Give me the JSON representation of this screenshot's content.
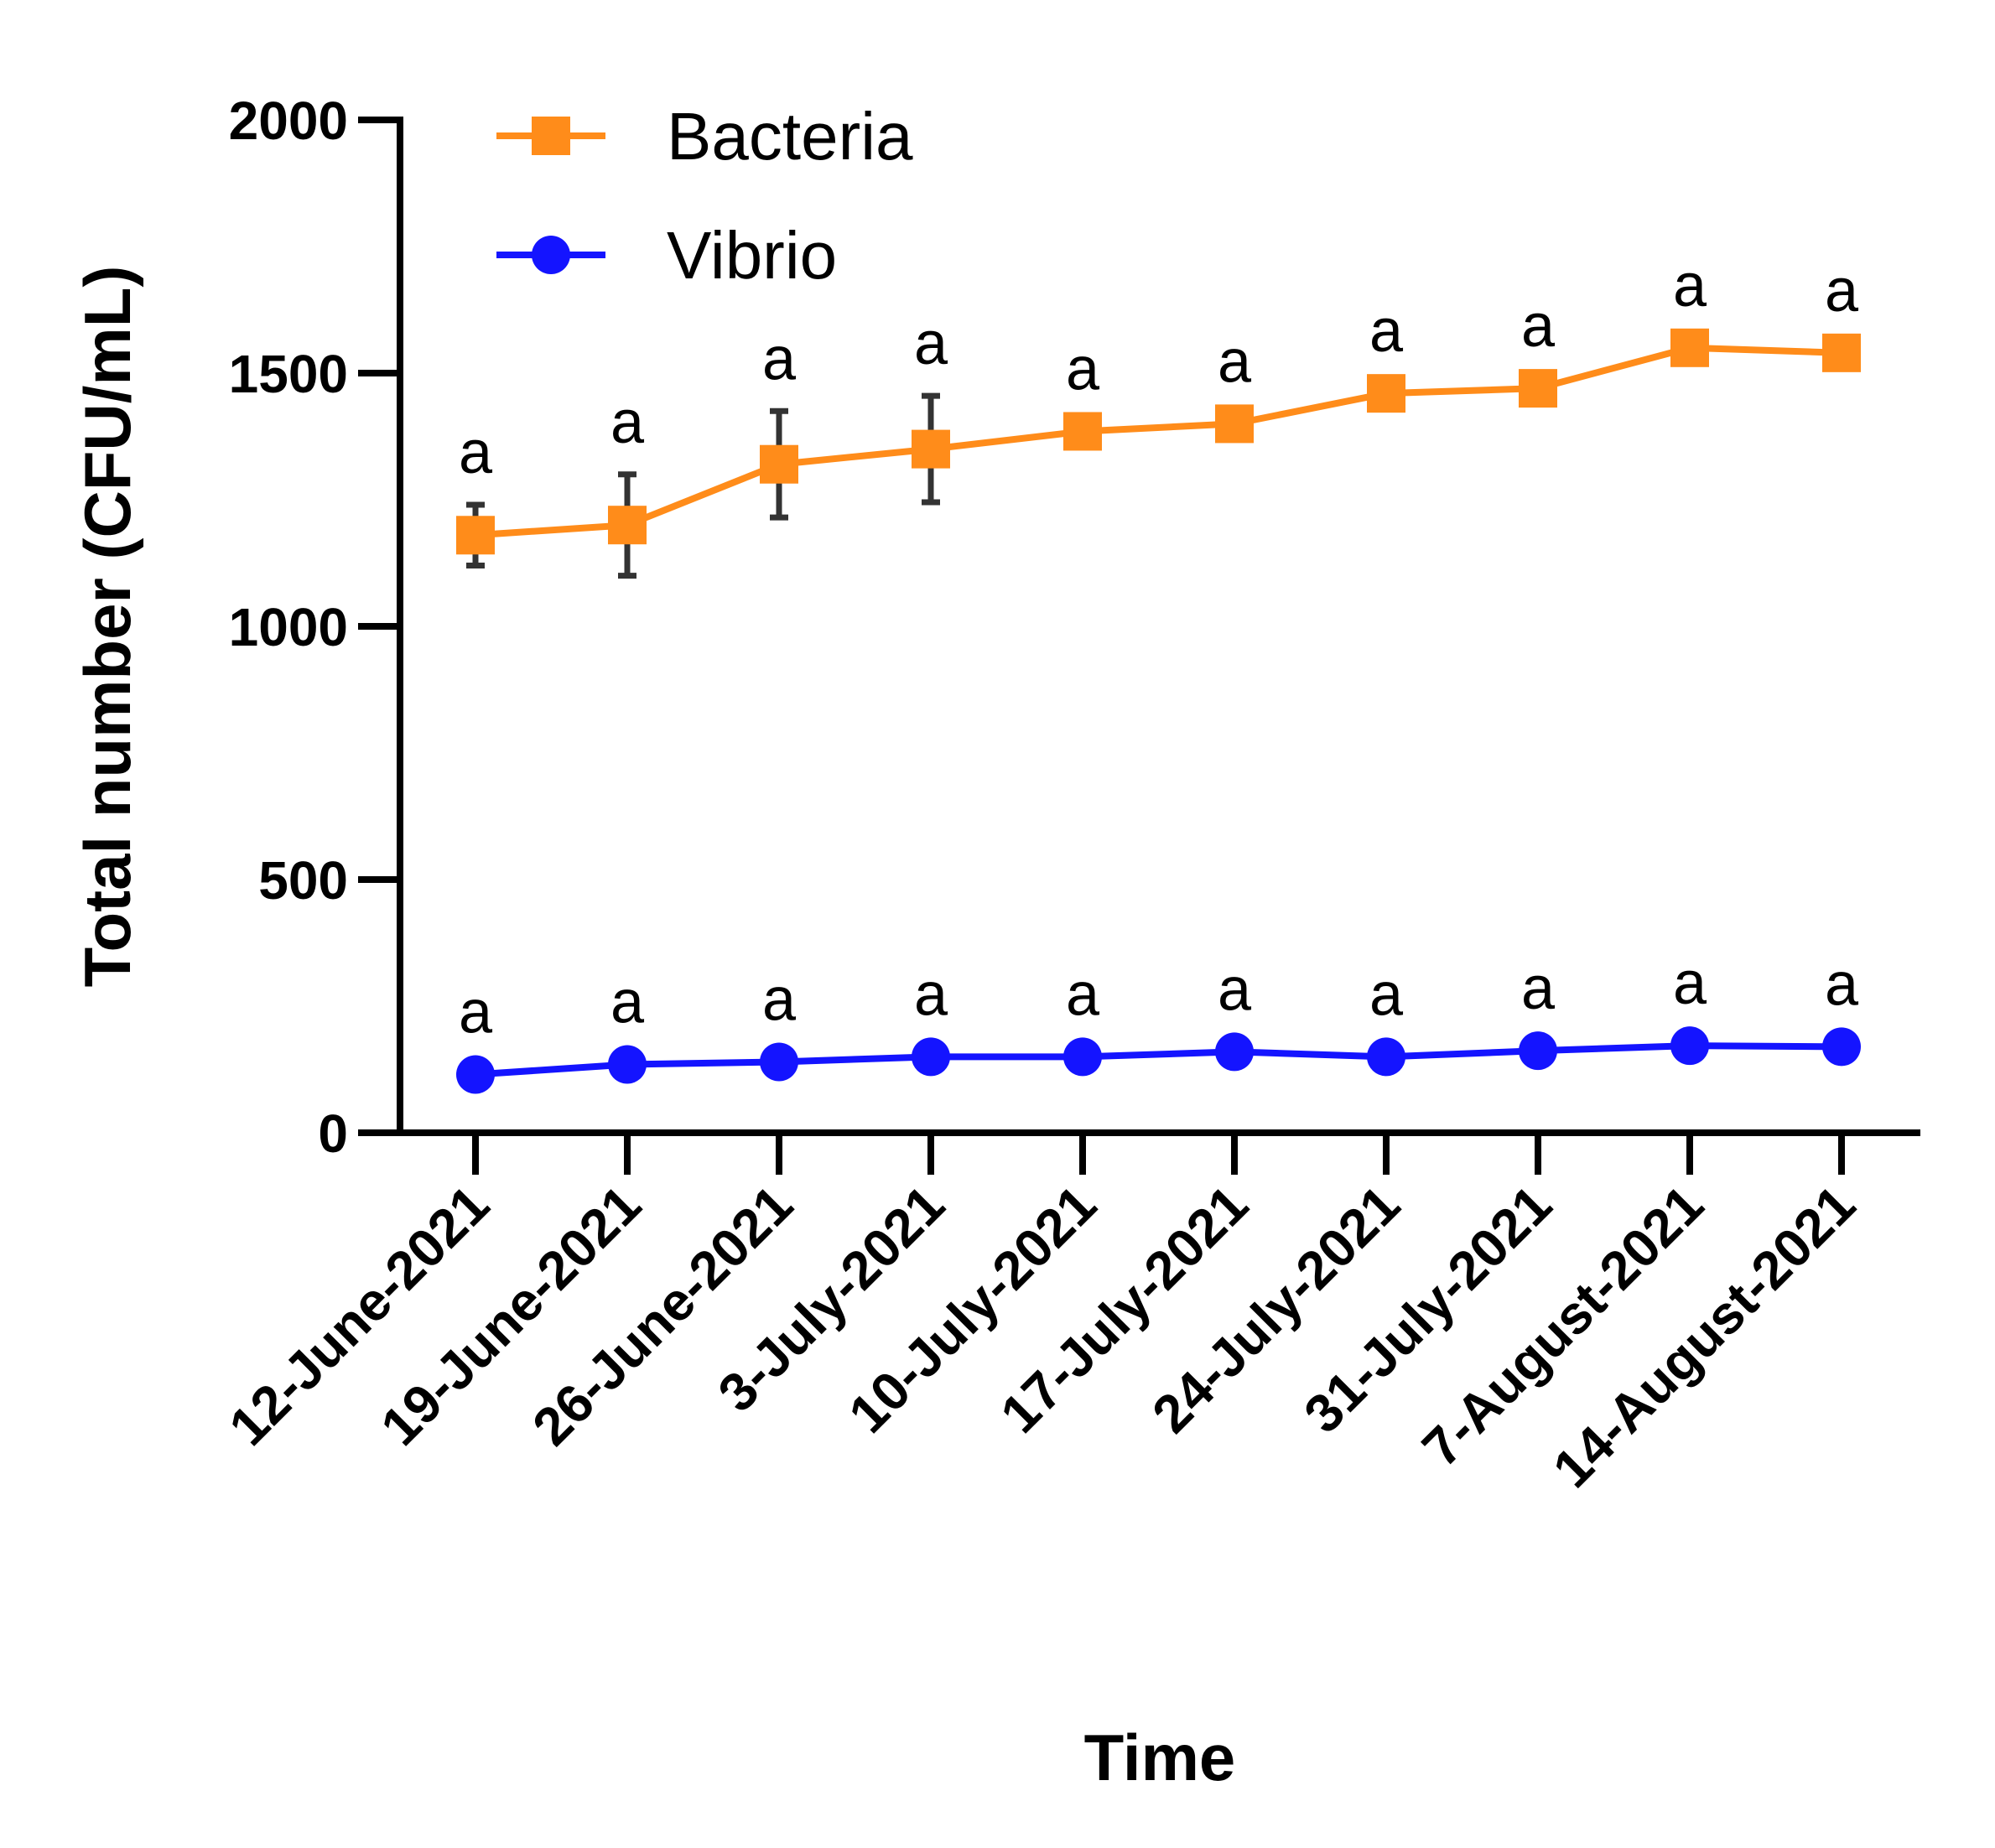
{
  "chart_data": {
    "type": "line",
    "title": "",
    "xlabel": "Time",
    "ylabel": "Total number (CFU/mL)",
    "ylim": [
      0,
      2000
    ],
    "yticks": [
      0,
      500,
      1000,
      1500,
      2000
    ],
    "categories": [
      "12-June-2021",
      "19-June-2021",
      "26-June-2021",
      "3-July-2021",
      "10-July-2021",
      "17-July-2021",
      "24-July-2021",
      "31-July-2021",
      "7-August-2021",
      "14-August-2021"
    ],
    "legend_position": "top-left",
    "series": [
      {
        "name": "Bacteria",
        "marker": "square",
        "color": "#FF8C1A",
        "values": [
          1180,
          1200,
          1320,
          1350,
          1385,
          1400,
          1460,
          1470,
          1550,
          1540
        ],
        "error": [
          60,
          100,
          105,
          105,
          0,
          0,
          0,
          0,
          0,
          0
        ],
        "labels": [
          "a",
          "a",
          "a",
          "a",
          "a",
          "a",
          "a",
          "a",
          "a",
          "a"
        ]
      },
      {
        "name": "Vibrio",
        "marker": "circle",
        "color": "#1414FF",
        "values": [
          115,
          135,
          140,
          150,
          150,
          160,
          150,
          162,
          172,
          170
        ],
        "error": [
          0,
          0,
          0,
          0,
          0,
          0,
          0,
          0,
          0,
          0
        ],
        "labels": [
          "a",
          "a",
          "a",
          "a",
          "a",
          "a",
          "a",
          "a",
          "a",
          "a"
        ]
      }
    ]
  }
}
